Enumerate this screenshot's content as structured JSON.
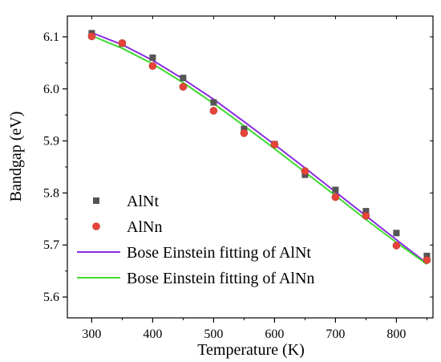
{
  "chart_data": {
    "type": "scatter",
    "xlabel": "Temperature (K)",
    "ylabel": "Bandgap (eV)",
    "xlim": [
      260,
      860
    ],
    "ylim": [
      5.56,
      6.14
    ],
    "xticks": [
      300,
      400,
      500,
      600,
      700,
      800
    ],
    "yticks": [
      5.6,
      5.7,
      5.8,
      5.9,
      6.0,
      6.1
    ],
    "xtick_labels": [
      "300",
      "400",
      "500",
      "600",
      "700",
      "800"
    ],
    "ytick_labels": [
      "5.6",
      "5.7",
      "5.8",
      "5.9",
      "6.0",
      "6.1"
    ],
    "grid": false,
    "legend_position": "bottom-left",
    "series": [
      {
        "name": "AlNt",
        "kind": "scatter",
        "marker": "square",
        "color": "#555555",
        "x": [
          300,
          350,
          400,
          450,
          500,
          550,
          600,
          650,
          700,
          750,
          800,
          850
        ],
        "y": [
          6.107,
          6.087,
          6.06,
          6.021,
          5.974,
          5.923,
          5.894,
          5.835,
          5.806,
          5.765,
          5.723,
          5.679
        ]
      },
      {
        "name": "AlNn",
        "kind": "scatter",
        "marker": "circle",
        "color": "#e8433a",
        "x": [
          300,
          350,
          400,
          450,
          500,
          550,
          600,
          650,
          700,
          750,
          800,
          850
        ],
        "y": [
          6.101,
          6.088,
          6.044,
          6.004,
          5.958,
          5.915,
          5.893,
          5.842,
          5.792,
          5.756,
          5.699,
          5.671
        ]
      },
      {
        "name": "Bose Einstein fitting of AlNt",
        "kind": "line",
        "color": "#8a2be2",
        "x": [
          300,
          350,
          400,
          450,
          500,
          550,
          600,
          650,
          700,
          750,
          800,
          850
        ],
        "y": [
          6.108,
          6.085,
          6.055,
          6.019,
          5.98,
          5.937,
          5.893,
          5.848,
          5.802,
          5.756,
          5.71,
          5.665
        ]
      },
      {
        "name": "Bose Einstein fitting of AlNn",
        "kind": "line",
        "color": "#3ddc2e",
        "x": [
          300,
          350,
          400,
          450,
          500,
          550,
          600,
          650,
          700,
          750,
          800,
          850
        ],
        "y": [
          6.102,
          6.078,
          6.048,
          6.012,
          5.972,
          5.929,
          5.885,
          5.84,
          5.795,
          5.749,
          5.705,
          5.663
        ]
      }
    ]
  }
}
